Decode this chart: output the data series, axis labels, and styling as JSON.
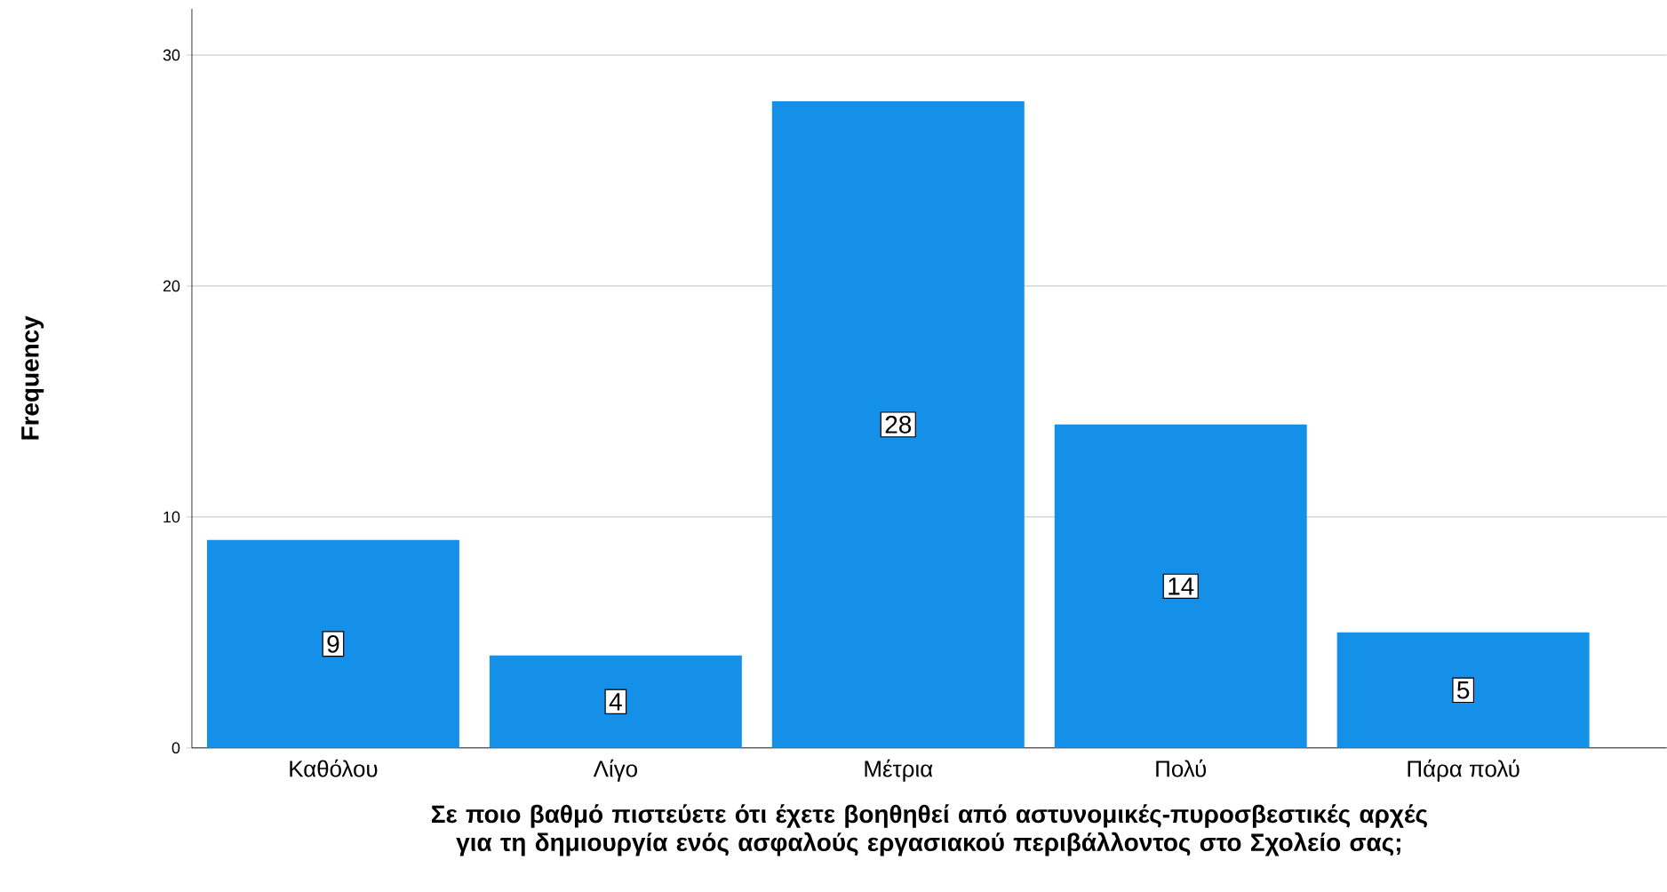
{
  "chart_data": {
    "type": "bar",
    "xlabel": "Σε ποιο βαθμό πιστεύετε ότι έχετε βοηθηθεί από αστυνομικές-πυροσβεστικές αρχές για τη δημιουργία ενός ασφαλούς εργασιακού περιβάλλοντος στο Σχολείο σας;",
    "ylabel": "Frequency",
    "categories": [
      "Καθόλου",
      "Λίγο",
      "Μέτρια",
      "Πολύ",
      "Πάρα πολύ"
    ],
    "values": [
      9,
      4,
      28,
      14,
      5
    ],
    "color": "#1590e8",
    "ylim": [
      0,
      32
    ],
    "yticks": [
      0,
      10,
      20,
      30
    ],
    "grid": "y",
    "data_labels": true
  }
}
